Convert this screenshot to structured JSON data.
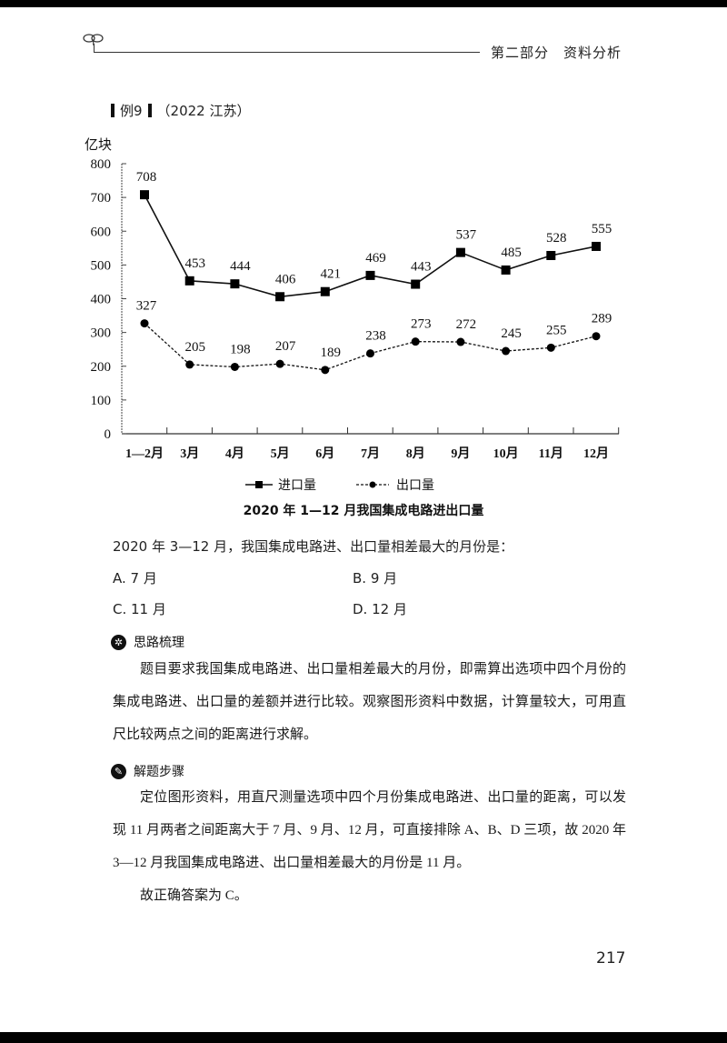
{
  "header": {
    "section_title": "第二部分　资料分析"
  },
  "example": {
    "label": "例9",
    "source": "（2022 江苏）"
  },
  "chart_data": {
    "type": "line",
    "title": "2020 年 1—12 月我国集成电路进出口量",
    "ylabel": "亿块",
    "xlabel": "",
    "ylim": [
      0,
      800
    ],
    "yticks": [
      0,
      100,
      200,
      300,
      400,
      500,
      600,
      700,
      800
    ],
    "categories": [
      "1—2月",
      "3月",
      "4月",
      "5月",
      "6月",
      "7月",
      "8月",
      "9月",
      "10月",
      "11月",
      "12月"
    ],
    "series": [
      {
        "name": "进口量",
        "style": "solid-square",
        "values": [
          708,
          453,
          444,
          406,
          421,
          469,
          443,
          537,
          485,
          528,
          555
        ]
      },
      {
        "name": "出口量",
        "style": "dashed-circle",
        "values": [
          327,
          205,
          198,
          207,
          189,
          238,
          273,
          272,
          245,
          255,
          289
        ]
      }
    ],
    "grid": false,
    "legend_position": "bottom"
  },
  "question": {
    "text": "2020 年 3—12 月，我国集成电路进、出口量相差最大的月份是：",
    "options": [
      {
        "label": "A. 7 月"
      },
      {
        "label": "B. 9 月"
      },
      {
        "label": "C. 11 月"
      },
      {
        "label": "D. 12 月"
      }
    ]
  },
  "analysis": {
    "title": "思路梳理",
    "icon": "gear-icon",
    "text": "题目要求我国集成电路进、出口量相差最大的月份，即需算出选项中四个月份的集成电路进、出口量的差额并进行比较。观察图形资料中数据，计算量较大，可用直尺比较两点之间的距离进行求解。"
  },
  "solution": {
    "title": "解题步骤",
    "icon": "pen-icon",
    "text": "定位图形资料，用直尺测量选项中四个月份集成电路进、出口量的距离，可以发现 11 月两者之间距离大于 7 月、9 月、12 月，可直接排除 A、B、D 三项，故 2020 年 3—12 月我国集成电路进、出口量相差最大的月份是 11 月。",
    "answer": "故正确答案为 C。"
  },
  "page_number": "217"
}
